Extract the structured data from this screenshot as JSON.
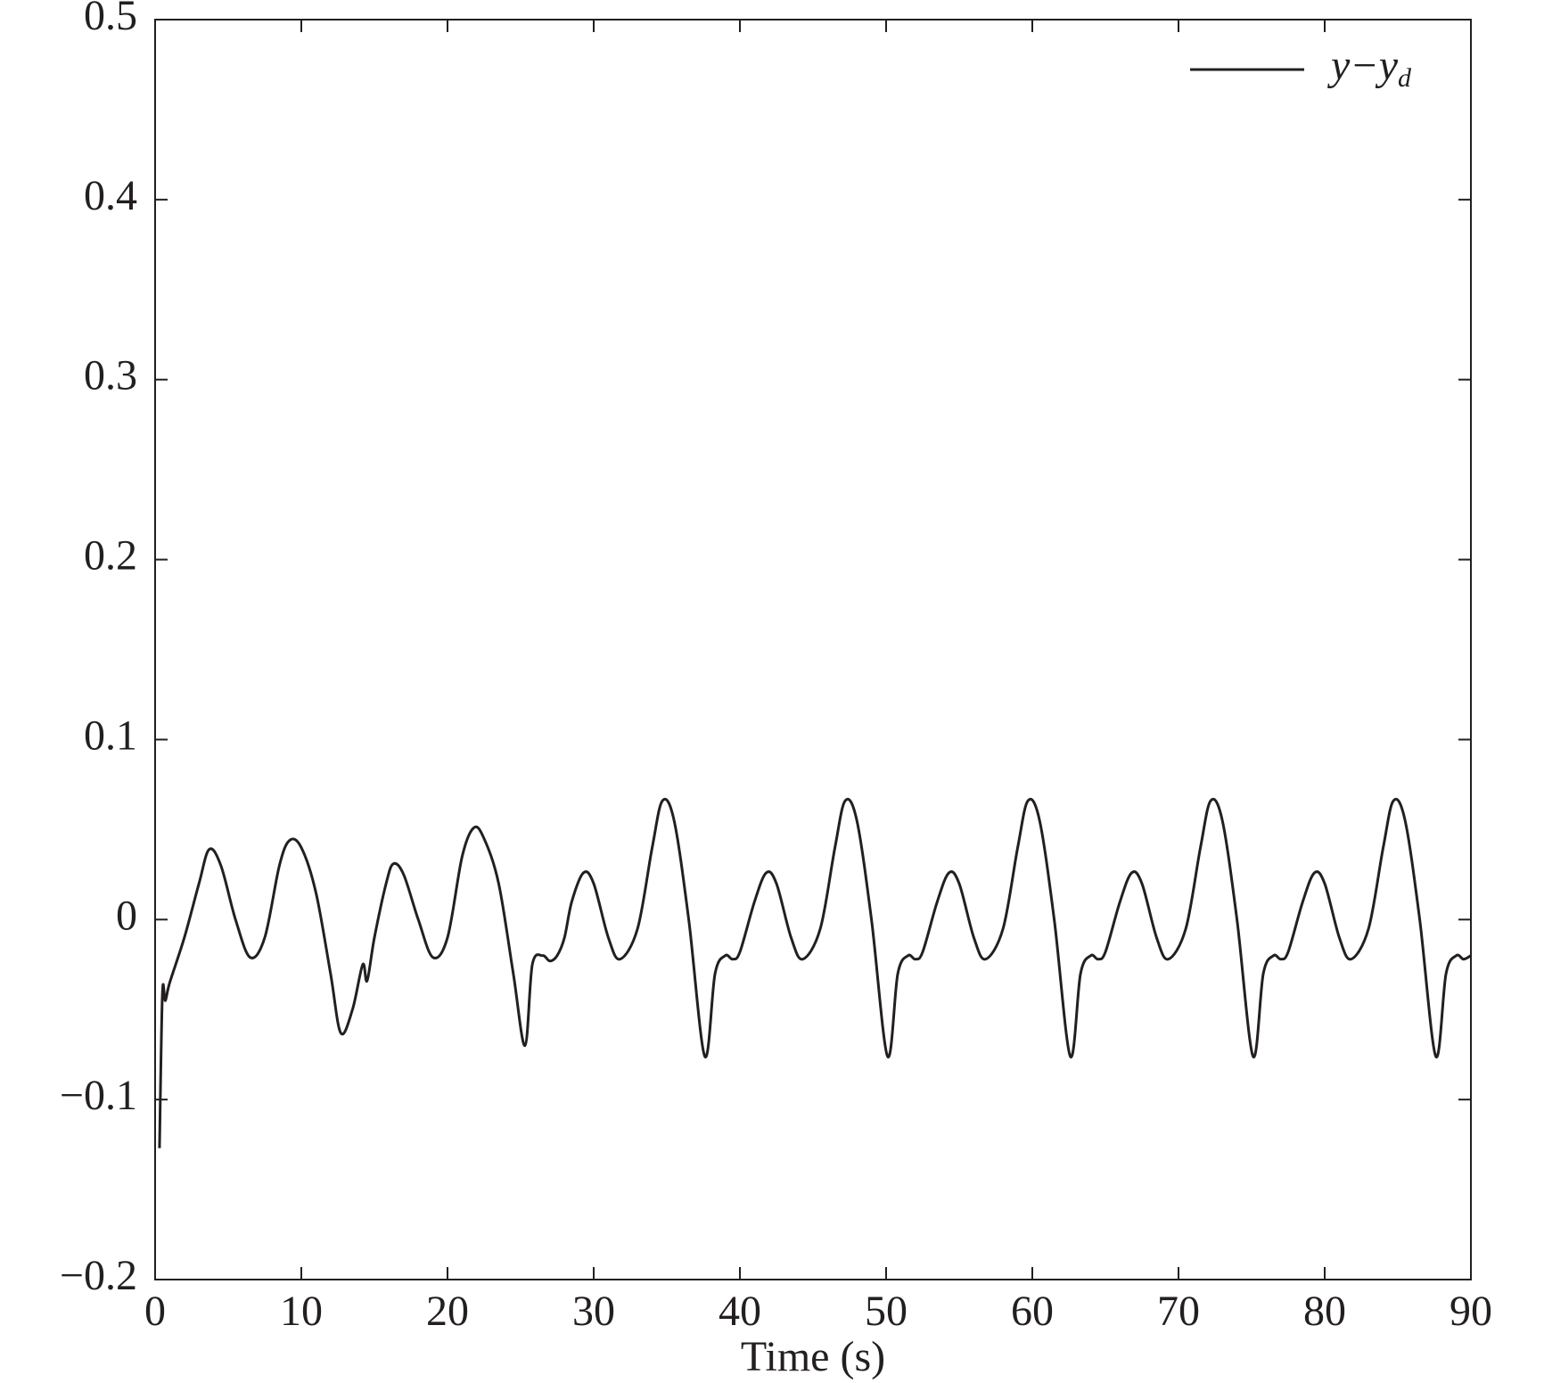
{
  "chart_data": {
    "type": "line",
    "xlabel": "Time (s)",
    "xlim": [
      0,
      90
    ],
    "xticks": [
      0,
      10,
      20,
      30,
      40,
      50,
      60,
      70,
      80,
      90
    ],
    "ylim": [
      -0.2,
      0.5
    ],
    "yticks": [
      {
        "value": -0.2,
        "label": "−0.2"
      },
      {
        "value": -0.1,
        "label": "−0.1"
      },
      0,
      0.1,
      0.2,
      0.3,
      0.4,
      0.5
    ],
    "legend": "upper right",
    "x": [
      0.3,
      0.5,
      0.7,
      1.0,
      2,
      3,
      3.7,
      4.5,
      5.5,
      6.5,
      7.5,
      8.5,
      9.2,
      10,
      11,
      12,
      12.7,
      13.5,
      14.2,
      14.5,
      15,
      15.8,
      16.3,
      17,
      18,
      19,
      20,
      21,
      21.8,
      22.5,
      23.5,
      24.5,
      25.3,
      25.8,
      26.5,
      27,
      27.5,
      28,
      28.5,
      29.3,
      30,
      31,
      31.8,
      33,
      34,
      34.7,
      35.5,
      36.5,
      37.6,
      38.3,
      39,
      39.5,
      40,
      41,
      41.8,
      42.5,
      43.5,
      44.3,
      45.5,
      46.5,
      47.2,
      48,
      49,
      50.1,
      50.8,
      51.5,
      52,
      52.5,
      53.5,
      54.3,
      55,
      56,
      56.8,
      58,
      59,
      59.7,
      60.5,
      61.5,
      62.6,
      63.3,
      64,
      64.5,
      65,
      66,
      66.8,
      67.5,
      68.5,
      69.3,
      70.5,
      71.5,
      72.2,
      73,
      74,
      75.1,
      75.8,
      76.5,
      77,
      77.5,
      78.5,
      79.3,
      80,
      81,
      81.8,
      83,
      84,
      84.7,
      85.5,
      86.5,
      87.6,
      88.3,
      89,
      89.5,
      90
    ],
    "series": [
      {
        "name": "y−yd",
        "color": "#231f20",
        "values": [
          -0.127,
          -0.041,
          -0.045,
          -0.035,
          -0.01,
          0.02,
          0.039,
          0.03,
          0,
          -0.021,
          -0.01,
          0.03,
          0.044,
          0.04,
          0.015,
          -0.03,
          -0.063,
          -0.05,
          -0.025,
          -0.034,
          -0.01,
          0.02,
          0.031,
          0.025,
          0,
          -0.021,
          -0.01,
          0.035,
          0.051,
          0.045,
          0.02,
          -0.03,
          -0.07,
          -0.025,
          -0.02,
          -0.023,
          -0.02,
          -0.01,
          0.01,
          0.026,
          0.02,
          -0.01,
          -0.022,
          -0.005,
          0.04,
          0.066,
          0.055,
          0,
          -0.076,
          -0.03,
          -0.02,
          -0.022,
          -0.018,
          0.01,
          0.026,
          0.02,
          -0.01,
          -0.022,
          -0.005,
          0.04,
          0.066,
          0.055,
          0,
          -0.076,
          -0.03,
          -0.02,
          -0.022,
          -0.018,
          0.01,
          0.026,
          0.02,
          -0.01,
          -0.022,
          -0.005,
          0.04,
          0.066,
          0.055,
          0,
          -0.076,
          -0.03,
          -0.02,
          -0.022,
          -0.018,
          0.01,
          0.026,
          0.02,
          -0.01,
          -0.022,
          -0.005,
          0.04,
          0.066,
          0.055,
          0,
          -0.076,
          -0.03,
          -0.02,
          -0.022,
          -0.018,
          0.01,
          0.026,
          0.02,
          -0.01,
          -0.022,
          -0.005,
          0.04,
          0.066,
          0.055,
          0,
          -0.076,
          -0.03,
          -0.02,
          -0.022,
          -0.02
        ]
      }
    ]
  }
}
